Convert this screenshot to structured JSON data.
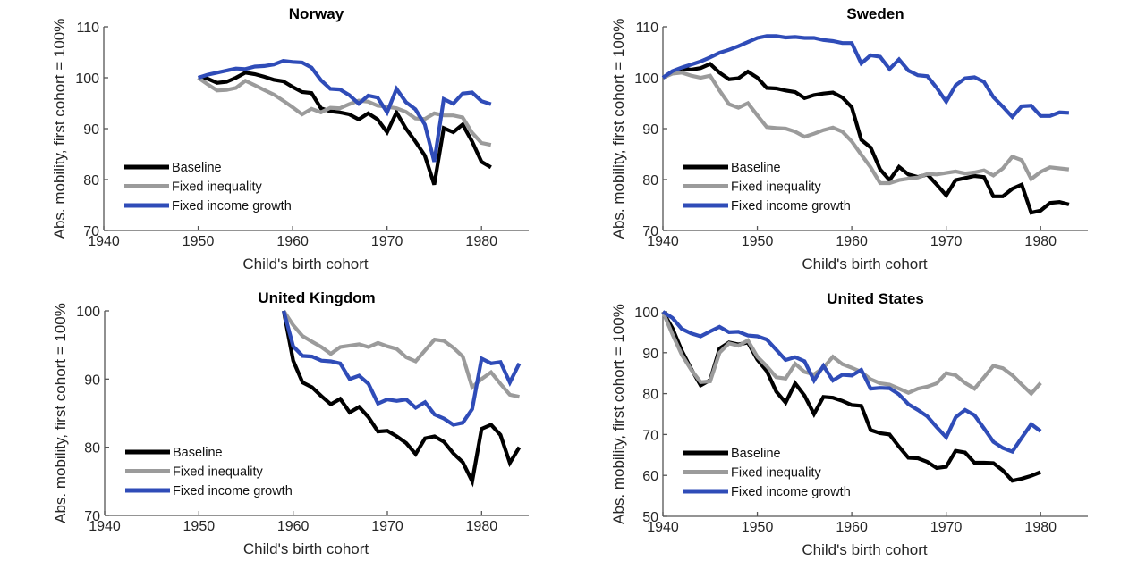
{
  "chart_data": [
    {
      "type": "line",
      "title": "Norway",
      "xlabel": "Child's birth cohort",
      "ylabel": "Abs. mobility, first cohort = 100%",
      "xlim": [
        1940,
        1985
      ],
      "ylim": [
        70,
        110
      ],
      "xticks": [
        1940,
        1950,
        1960,
        1970,
        1980
      ],
      "yticks": [
        70,
        80,
        90,
        100,
        110
      ],
      "grid": false,
      "legend_position": "bottom-left",
      "x": [
        1950,
        1951,
        1952,
        1953,
        1954,
        1955,
        1956,
        1957,
        1958,
        1959,
        1960,
        1961,
        1962,
        1963,
        1964,
        1965,
        1966,
        1967,
        1968,
        1969,
        1970,
        1971,
        1972,
        1973,
        1974,
        1975,
        1976,
        1977,
        1978,
        1979,
        1980,
        1981
      ],
      "series": [
        {
          "name": "Baseline",
          "color": "#000000",
          "values": [
            100,
            99.8,
            99,
            99.2,
            100,
            101,
            100.7,
            100.2,
            99.6,
            99.3,
            98.2,
            97.2,
            97,
            94,
            93.4,
            93.2,
            92.8,
            91.8,
            93,
            91.8,
            89.3,
            93.2,
            90,
            87.5,
            84.7,
            79,
            90.1,
            89.3,
            90.8,
            87.5,
            83.5,
            82.4
          ]
        },
        {
          "name": "Fixed inequality",
          "color": "#9b9b9b",
          "values": [
            100,
            98.7,
            97.5,
            97.6,
            98,
            99.4,
            98.5,
            97.6,
            96.7,
            95.5,
            94.2,
            92.8,
            93.9,
            93.2,
            94.1,
            94,
            94.8,
            95.5,
            95.3,
            94.5,
            94.3,
            94,
            93.3,
            92,
            91.9,
            93,
            92.6,
            92.6,
            92.2,
            89.2,
            87.2,
            86.8
          ]
        },
        {
          "name": "Fixed income growth",
          "color": "#2f4cb8",
          "values": [
            100,
            100.6,
            101,
            101.4,
            101.8,
            101.7,
            102.2,
            102.3,
            102.6,
            103.3,
            103.1,
            103,
            102,
            99.5,
            97.8,
            97.7,
            96.6,
            94.9,
            96.5,
            96.1,
            93.2,
            97.8,
            95.2,
            93.8,
            90.8,
            83.5,
            95.8,
            94.9,
            96.9,
            97.1,
            95.4,
            94.8
          ]
        }
      ]
    },
    {
      "type": "line",
      "title": "Sweden",
      "xlabel": "Child's birth cohort",
      "ylabel": "Abs. mobility, first cohort = 100%",
      "xlim": [
        1940,
        1985
      ],
      "ylim": [
        70,
        110
      ],
      "xticks": [
        1940,
        1950,
        1960,
        1970,
        1980
      ],
      "yticks": [
        70,
        80,
        90,
        100,
        110
      ],
      "grid": false,
      "legend_position": "bottom-left",
      "x": [
        1940,
        1941,
        1942,
        1943,
        1944,
        1945,
        1946,
        1947,
        1948,
        1949,
        1950,
        1951,
        1952,
        1953,
        1954,
        1955,
        1956,
        1957,
        1958,
        1959,
        1960,
        1961,
        1962,
        1963,
        1964,
        1965,
        1966,
        1967,
        1968,
        1969,
        1970,
        1971,
        1972,
        1973,
        1974,
        1975,
        1976,
        1977,
        1978,
        1979,
        1980,
        1981,
        1982,
        1983
      ],
      "series": [
        {
          "name": "Baseline",
          "color": "#000000",
          "values": [
            100,
            101.2,
            101.8,
            101.6,
            101.9,
            102.7,
            101,
            99.7,
            99.9,
            101.2,
            100,
            98,
            97.9,
            97.5,
            97.2,
            96,
            96.6,
            96.9,
            97.1,
            96.1,
            94.2,
            87.8,
            86.3,
            82,
            79.9,
            82.5,
            81,
            80.5,
            81,
            79,
            76.9,
            79.9,
            80.3,
            80.7,
            80.5,
            76.7,
            76.7,
            78.2,
            79,
            73.5,
            73.9,
            75.4,
            75.6,
            75.1
          ]
        },
        {
          "name": "Fixed inequality",
          "color": "#9b9b9b",
          "values": [
            100,
            100.8,
            101,
            100.4,
            100,
            100.4,
            97.5,
            94.8,
            94.1,
            95,
            92.6,
            90.3,
            90.1,
            90,
            89.4,
            88.4,
            89,
            89.7,
            90.2,
            89.4,
            87.5,
            84.9,
            82.4,
            79.3,
            79.3,
            79.9,
            80.2,
            80.4,
            81.1,
            81,
            81.3,
            81.6,
            81.2,
            81.4,
            81.8,
            80.8,
            82.2,
            84.5,
            83.8,
            80.1,
            81.5,
            82.4,
            82.2,
            82
          ]
        },
        {
          "name": "Fixed income growth",
          "color": "#2f4cb8",
          "values": [
            100,
            101.3,
            102,
            102.6,
            103.2,
            104,
            104.9,
            105.5,
            106.2,
            107,
            107.8,
            108.2,
            108.2,
            107.9,
            108,
            107.8,
            107.8,
            107.4,
            107.2,
            106.8,
            106.8,
            102.8,
            104.4,
            104.1,
            101.7,
            103.6,
            101.4,
            100.5,
            100.3,
            98,
            95.3,
            98.5,
            99.9,
            100.1,
            99.2,
            96.2,
            94.3,
            92.3,
            94.4,
            94.5,
            92.5,
            92.5,
            93.2,
            93.1
          ]
        }
      ]
    },
    {
      "type": "line",
      "title": "United Kingdom",
      "xlabel": "Child's birth cohort",
      "ylabel": "Abs. mobility, first cohort = 100%",
      "xlim": [
        1940,
        1985
      ],
      "ylim": [
        70,
        100
      ],
      "xticks": [
        1940,
        1950,
        1960,
        1970,
        1980
      ],
      "yticks": [
        70,
        80,
        90,
        100
      ],
      "grid": false,
      "legend_position": "bottom-left",
      "x": [
        1959,
        1960,
        1961,
        1962,
        1963,
        1964,
        1965,
        1966,
        1967,
        1968,
        1969,
        1970,
        1971,
        1972,
        1973,
        1974,
        1975,
        1976,
        1977,
        1978,
        1979,
        1980,
        1981,
        1982,
        1983,
        1984
      ],
      "series": [
        {
          "name": "Baseline",
          "color": "#000000",
          "values": [
            100,
            92.7,
            89.5,
            88.8,
            87.5,
            86.3,
            87.1,
            85.1,
            85.9,
            84.4,
            82.3,
            82.4,
            81.6,
            80.6,
            79,
            81.3,
            81.6,
            80.8,
            79.1,
            77.8,
            75,
            82.7,
            83.3,
            81.8,
            77.7,
            80
          ]
        },
        {
          "name": "Fixed inequality",
          "color": "#9b9b9b",
          "values": [
            100,
            97.9,
            96.3,
            95.5,
            94.7,
            93.7,
            94.7,
            94.9,
            95.1,
            94.7,
            95.3,
            94.8,
            94.4,
            93.2,
            92.6,
            94.2,
            95.8,
            95.6,
            94.6,
            93.3,
            88.8,
            90,
            91,
            89.3,
            87.7,
            87.4
          ]
        },
        {
          "name": "Fixed income growth",
          "color": "#2f4cb8",
          "values": [
            100,
            94.8,
            93.4,
            93.3,
            92.7,
            92.6,
            92.3,
            90,
            90.5,
            89.3,
            86.4,
            87,
            86.8,
            87,
            85.8,
            86.6,
            84.8,
            84.2,
            83.3,
            83.6,
            85.6,
            93,
            92.3,
            92.5,
            89.5,
            92.3
          ]
        }
      ]
    },
    {
      "type": "line",
      "title": "United States",
      "xlabel": "Child's birth cohort",
      "ylabel": "Abs. mobility, first cohort = 100%",
      "xlim": [
        1940,
        1985
      ],
      "ylim": [
        50,
        100
      ],
      "xticks": [
        1940,
        1950,
        1960,
        1970,
        1980
      ],
      "yticks": [
        50,
        60,
        70,
        80,
        90,
        100
      ],
      "grid": false,
      "legend_position": "bottom-left",
      "x": [
        1940,
        1941,
        1942,
        1943,
        1944,
        1945,
        1946,
        1947,
        1948,
        1949,
        1950,
        1951,
        1952,
        1953,
        1954,
        1955,
        1956,
        1957,
        1958,
        1959,
        1960,
        1961,
        1962,
        1963,
        1964,
        1965,
        1966,
        1967,
        1968,
        1969,
        1970,
        1971,
        1972,
        1973,
        1974,
        1975,
        1976,
        1977,
        1978,
        1979,
        1980
      ],
      "series": [
        {
          "name": "Baseline",
          "color": "#000000",
          "values": [
            100,
            96,
            90.5,
            86,
            82,
            83.3,
            91,
            92.5,
            92,
            92.5,
            88.3,
            85.5,
            80.5,
            77.8,
            82.5,
            79.5,
            75,
            79.2,
            79,
            78.2,
            77.2,
            77,
            71.1,
            70.3,
            70,
            67,
            64.3,
            64.2,
            63.3,
            61.8,
            62.1,
            66,
            65.6,
            63.1,
            63.1,
            63,
            61.2,
            58.7,
            59.2,
            59.9,
            60.8
          ]
        },
        {
          "name": "Fixed inequality",
          "color": "#9b9b9b",
          "values": [
            100,
            94.5,
            89.5,
            85.8,
            82.8,
            83,
            90,
            92.3,
            91.7,
            93,
            89,
            86.7,
            84,
            83.7,
            87.3,
            85.3,
            84.7,
            86.3,
            89,
            87.2,
            86.3,
            85.3,
            83.5,
            82.5,
            82.2,
            81.2,
            80.2,
            81.2,
            81.7,
            82.5,
            85,
            84.5,
            82.6,
            81.2,
            84,
            86.8,
            86.2,
            84.5,
            82.2,
            80,
            82.6
          ]
        },
        {
          "name": "Fixed income growth",
          "color": "#2f4cb8",
          "values": [
            100,
            98.5,
            95.8,
            94.7,
            94,
            95.2,
            96.3,
            95,
            95.1,
            94.2,
            94,
            93.2,
            90.7,
            88.2,
            88.9,
            87.9,
            83.2,
            86.8,
            83.2,
            84.6,
            84.4,
            85.8,
            81.2,
            81.4,
            81.3,
            79.8,
            77.4,
            76,
            74.4,
            71.8,
            69.3,
            74.2,
            76,
            74.7,
            71.5,
            68.2,
            66.7,
            65.8,
            69.2,
            72.5,
            70.8
          ]
        }
      ]
    }
  ]
}
